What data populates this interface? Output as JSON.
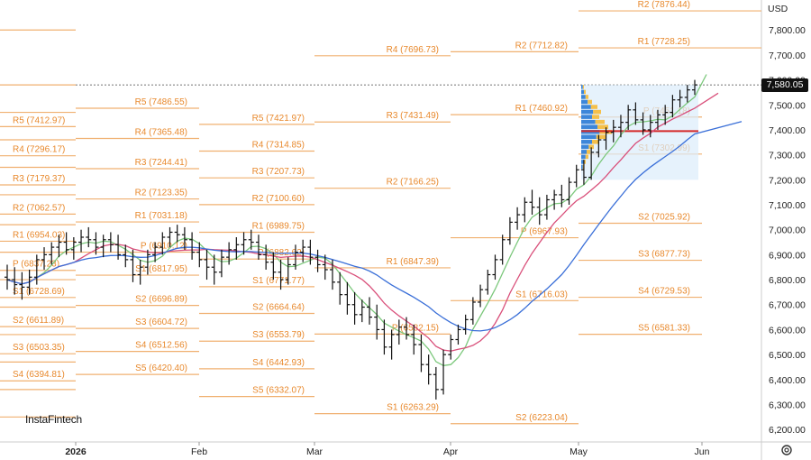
{
  "currency": "USD",
  "logo": "InstaFintech",
  "last_price": "7,580.05",
  "colors": {
    "level": "#f0b070",
    "level_text": "#e8892d",
    "candle": "#111111",
    "ma_fast": "#7cc87c",
    "ma_mid": "#d94f7a",
    "ma_slow": "#3a6fd8",
    "poc": "#d42a2a",
    "volume_buy": "#3d86d9",
    "volume_sell": "#f5c04a"
  },
  "chart_data": {
    "type": "candlestick",
    "y_range": [
      6150,
      7920
    ],
    "y_ticks": [
      "7,800.00",
      "7,700.00",
      "7,600.00",
      "7,500.00",
      "7,400.00",
      "7,300.00",
      "7,200.00",
      "7,100.00",
      "7,000.00",
      "6,900.00",
      "6,800.00",
      "6,700.00",
      "6,600.00",
      "6,500.00",
      "6,400.00",
      "6,300.00",
      "6,200.00"
    ],
    "x_ticks": [
      "2026",
      "Feb",
      "Mar",
      "Apr",
      "May",
      "Jun"
    ],
    "pivot_levels": [
      {
        "label": "R5 (7412.97)",
        "value": 7412.97,
        "period": "jan"
      },
      {
        "label": "R4 (7296.17)",
        "value": 7296.17,
        "period": "jan"
      },
      {
        "label": "R3 (7179.37)",
        "value": 7179.37,
        "period": "jan"
      },
      {
        "label": "R2 (7062.57)",
        "value": 7062.57,
        "period": "jan"
      },
      {
        "label": "R1 (6954.03)",
        "value": 6954.03,
        "period": "jan"
      },
      {
        "label": "P (6837.23)",
        "value": 6837.23,
        "period": "jan"
      },
      {
        "label": "S1 (6728.69)",
        "value": 6728.69,
        "period": "jan"
      },
      {
        "label": "S2 (6611.89)",
        "value": 6611.89,
        "period": "jan"
      },
      {
        "label": "S3 (6503.35)",
        "value": 6503.35,
        "period": "jan"
      },
      {
        "label": "S4 (6394.81)",
        "value": 6394.81,
        "period": "jan"
      },
      {
        "label": "R5 (7486.55)",
        "value": 7486.55,
        "period": "feb"
      },
      {
        "label": "R4 (7365.48)",
        "value": 7365.48,
        "period": "feb"
      },
      {
        "label": "R3 (7244.41)",
        "value": 7244.41,
        "period": "feb"
      },
      {
        "label": "R2 (7123.35)",
        "value": 7123.35,
        "period": "feb"
      },
      {
        "label": "R1 (7031.18)",
        "value": 7031.18,
        "period": "feb"
      },
      {
        "label": "P (6910.12)",
        "value": 6910.12,
        "period": "feb"
      },
      {
        "label": "S1 (6817.95)",
        "value": 6817.95,
        "period": "feb"
      },
      {
        "label": "S2 (6696.89)",
        "value": 6696.89,
        "period": "feb"
      },
      {
        "label": "S3 (6604.72)",
        "value": 6604.72,
        "period": "feb"
      },
      {
        "label": "S4 (6512.56)",
        "value": 6512.56,
        "period": "feb"
      },
      {
        "label": "S5 (6420.40)",
        "value": 6420.4,
        "period": "feb"
      },
      {
        "label": "R5 (7421.97)",
        "value": 7421.97,
        "period": "mar"
      },
      {
        "label": "R4 (7314.85)",
        "value": 7314.85,
        "period": "mar"
      },
      {
        "label": "R3 (7207.73)",
        "value": 7207.73,
        "period": "mar"
      },
      {
        "label": "R2 (7100.60)",
        "value": 7100.6,
        "period": "mar"
      },
      {
        "label": "R1 (6989.75)",
        "value": 6989.75,
        "period": "mar"
      },
      {
        "label": "P (6882.62)",
        "value": 6882.62,
        "period": "mar"
      },
      {
        "label": "S1 (6771.77)",
        "value": 6771.77,
        "period": "mar"
      },
      {
        "label": "S2 (6664.64)",
        "value": 6664.64,
        "period": "mar"
      },
      {
        "label": "S3 (6553.79)",
        "value": 6553.79,
        "period": "mar"
      },
      {
        "label": "S4 (6442.93)",
        "value": 6442.93,
        "period": "mar"
      },
      {
        "label": "S5 (6332.07)",
        "value": 6332.07,
        "period": "mar"
      },
      {
        "label": "R4 (7696.73)",
        "value": 7696.73,
        "period": "apr"
      },
      {
        "label": "R3 (7431.49)",
        "value": 7431.49,
        "period": "apr"
      },
      {
        "label": "R2 (7166.25)",
        "value": 7166.25,
        "period": "apr"
      },
      {
        "label": "R1 (6847.39)",
        "value": 6847.39,
        "period": "apr"
      },
      {
        "label": "P (6582.15)",
        "value": 6582.15,
        "period": "apr"
      },
      {
        "label": "S1 (6263.29)",
        "value": 6263.29,
        "period": "apr"
      },
      {
        "label": "R2 (7712.82)",
        "value": 7712.82,
        "period": "may"
      },
      {
        "label": "R1 (7460.92)",
        "value": 7460.92,
        "period": "may"
      },
      {
        "label": "P (6967.93)",
        "value": 6967.93,
        "period": "may"
      },
      {
        "label": "S1 (6716.03)",
        "value": 6716.03,
        "period": "may"
      },
      {
        "label": "S2 (6223.04)",
        "value": 6223.04,
        "period": "may"
      },
      {
        "label": "R2 (7876.44)",
        "value": 7876.44,
        "period": "jun"
      },
      {
        "label": "R1 (7728.25)",
        "value": 7728.25,
        "period": "jun"
      },
      {
        "label": "P (7451.18)",
        "value": 7451.18,
        "period": "jun"
      },
      {
        "label": "S1 (7302.99)",
        "value": 7302.99,
        "period": "jun"
      },
      {
        "label": "S2 (7025.92)",
        "value": 7025.92,
        "period": "jun"
      },
      {
        "label": "S3 (6877.73)",
        "value": 6877.73,
        "period": "jun"
      },
      {
        "label": "S4 (6729.53)",
        "value": 6729.53,
        "period": "jun"
      },
      {
        "label": "S5 (6581.33)",
        "value": 6581.33,
        "period": "jun"
      }
    ],
    "candles": [
      [
        6810,
        6860,
        6760,
        6800
      ],
      [
        6800,
        6850,
        6740,
        6780
      ],
      [
        6780,
        6830,
        6720,
        6770
      ],
      [
        6770,
        6840,
        6740,
        6810
      ],
      [
        6810,
        6900,
        6780,
        6880
      ],
      [
        6880,
        6930,
        6840,
        6900
      ],
      [
        6900,
        6950,
        6860,
        6930
      ],
      [
        6930,
        6980,
        6890,
        6950
      ],
      [
        6950,
        6990,
        6900,
        6920
      ],
      [
        6920,
        6970,
        6880,
        6950
      ],
      [
        6950,
        7000,
        6910,
        6970
      ],
      [
        6970,
        7010,
        6930,
        6960
      ],
      [
        6960,
        6990,
        6900,
        6930
      ],
      [
        6930,
        6980,
        6890,
        6960
      ],
      [
        6960,
        6990,
        6910,
        6940
      ],
      [
        6940,
        6980,
        6880,
        6900
      ],
      [
        6900,
        6940,
        6850,
        6880
      ],
      [
        6880,
        6920,
        6790,
        6820
      ],
      [
        6820,
        6880,
        6780,
        6850
      ],
      [
        6850,
        6920,
        6820,
        6900
      ],
      [
        6900,
        6950,
        6870,
        6930
      ],
      [
        6930,
        6990,
        6900,
        6970
      ],
      [
        6970,
        7010,
        6930,
        6990
      ],
      [
        6990,
        7020,
        6950,
        6980
      ],
      [
        6980,
        7010,
        6920,
        6960
      ],
      [
        6960,
        6990,
        6880,
        6910
      ],
      [
        6910,
        6950,
        6850,
        6880
      ],
      [
        6880,
        6920,
        6800,
        6850
      ],
      [
        6850,
        6900,
        6780,
        6830
      ],
      [
        6830,
        6920,
        6810,
        6890
      ],
      [
        6890,
        6950,
        6860,
        6920
      ],
      [
        6920,
        6970,
        6880,
        6940
      ],
      [
        6940,
        6990,
        6900,
        6960
      ],
      [
        6960,
        7000,
        6920,
        6950
      ],
      [
        6950,
        6980,
        6880,
        6900
      ],
      [
        6900,
        6940,
        6840,
        6870
      ],
      [
        6870,
        6910,
        6800,
        6830
      ],
      [
        6830,
        6880,
        6760,
        6800
      ],
      [
        6800,
        6890,
        6780,
        6860
      ],
      [
        6860,
        6940,
        6840,
        6910
      ],
      [
        6910,
        6960,
        6870,
        6930
      ],
      [
        6930,
        6960,
        6860,
        6890
      ],
      [
        6890,
        6920,
        6830,
        6860
      ],
      [
        6860,
        6900,
        6800,
        6840
      ],
      [
        6840,
        6880,
        6760,
        6790
      ],
      [
        6790,
        6830,
        6700,
        6740
      ],
      [
        6740,
        6790,
        6660,
        6700
      ],
      [
        6700,
        6750,
        6620,
        6660
      ],
      [
        6660,
        6720,
        6630,
        6690
      ],
      [
        6690,
        6730,
        6620,
        6650
      ],
      [
        6650,
        6700,
        6560,
        6600
      ],
      [
        6600,
        6640,
        6500,
        6530
      ],
      [
        6530,
        6600,
        6480,
        6580
      ],
      [
        6580,
        6640,
        6540,
        6610
      ],
      [
        6610,
        6650,
        6560,
        6580
      ],
      [
        6580,
        6620,
        6500,
        6540
      ],
      [
        6540,
        6580,
        6430,
        6460
      ],
      [
        6460,
        6500,
        6380,
        6420
      ],
      [
        6420,
        6450,
        6320,
        6360
      ],
      [
        6360,
        6520,
        6340,
        6500
      ],
      [
        6500,
        6580,
        6480,
        6560
      ],
      [
        6560,
        6620,
        6540,
        6600
      ],
      [
        6600,
        6660,
        6580,
        6640
      ],
      [
        6640,
        6730,
        6620,
        6710
      ],
      [
        6710,
        6780,
        6690,
        6760
      ],
      [
        6760,
        6840,
        6740,
        6820
      ],
      [
        6820,
        6900,
        6800,
        6880
      ],
      [
        6880,
        6980,
        6860,
        6960
      ],
      [
        6960,
        7050,
        6940,
        7030
      ],
      [
        7030,
        7090,
        7000,
        7060
      ],
      [
        7060,
        7130,
        7030,
        7110
      ],
      [
        7110,
        7160,
        7060,
        7090
      ],
      [
        7090,
        7130,
        7020,
        7060
      ],
      [
        7060,
        7140,
        7040,
        7120
      ],
      [
        7120,
        7160,
        7080,
        7140
      ],
      [
        7140,
        7180,
        7090,
        7120
      ],
      [
        7120,
        7210,
        7100,
        7190
      ],
      [
        7190,
        7260,
        7170,
        7240
      ],
      [
        7240,
        7280,
        7180,
        7210
      ],
      [
        7210,
        7330,
        7200,
        7310
      ],
      [
        7310,
        7380,
        7290,
        7360
      ],
      [
        7360,
        7410,
        7320,
        7390
      ],
      [
        7390,
        7440,
        7350,
        7410
      ],
      [
        7410,
        7460,
        7370,
        7430
      ],
      [
        7430,
        7500,
        7400,
        7480
      ],
      [
        7480,
        7510,
        7420,
        7440
      ],
      [
        7440,
        7470,
        7380,
        7400
      ],
      [
        7400,
        7460,
        7370,
        7430
      ],
      [
        7430,
        7480,
        7400,
        7460
      ],
      [
        7460,
        7500,
        7420,
        7470
      ],
      [
        7470,
        7540,
        7450,
        7520
      ],
      [
        7520,
        7560,
        7490,
        7530
      ],
      [
        7530,
        7580,
        7510,
        7560
      ],
      [
        7560,
        7600,
        7540,
        7580
      ]
    ],
    "volume_profile": {
      "poc": 7395
    }
  }
}
